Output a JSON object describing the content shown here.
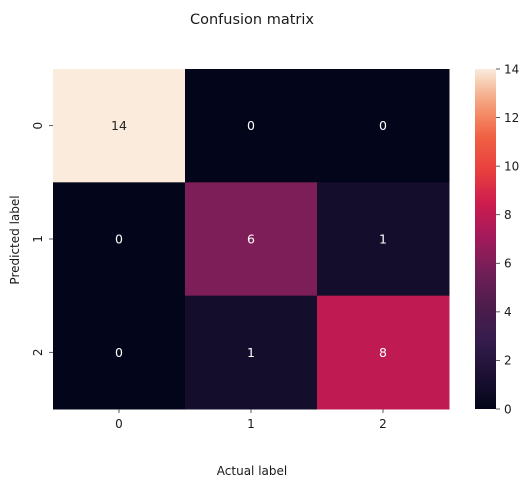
{
  "chart_data": {
    "type": "heatmap",
    "title": "Confusion matrix",
    "xlabel": "Actual label",
    "ylabel": "Predicted label",
    "x_categories": [
      "0",
      "1",
      "2"
    ],
    "y_categories": [
      "0",
      "1",
      "2"
    ],
    "values": [
      [
        14,
        0,
        0
      ],
      [
        0,
        6,
        1
      ],
      [
        0,
        1,
        8
      ]
    ],
    "colorbar": {
      "min": 0,
      "max": 14,
      "ticks": [
        0,
        2,
        4,
        6,
        8,
        10,
        12,
        14
      ],
      "colormap": "rocket"
    },
    "annotations": true,
    "annotation_colors": {
      "light": "#ffffff",
      "dark": "#262626"
    }
  }
}
